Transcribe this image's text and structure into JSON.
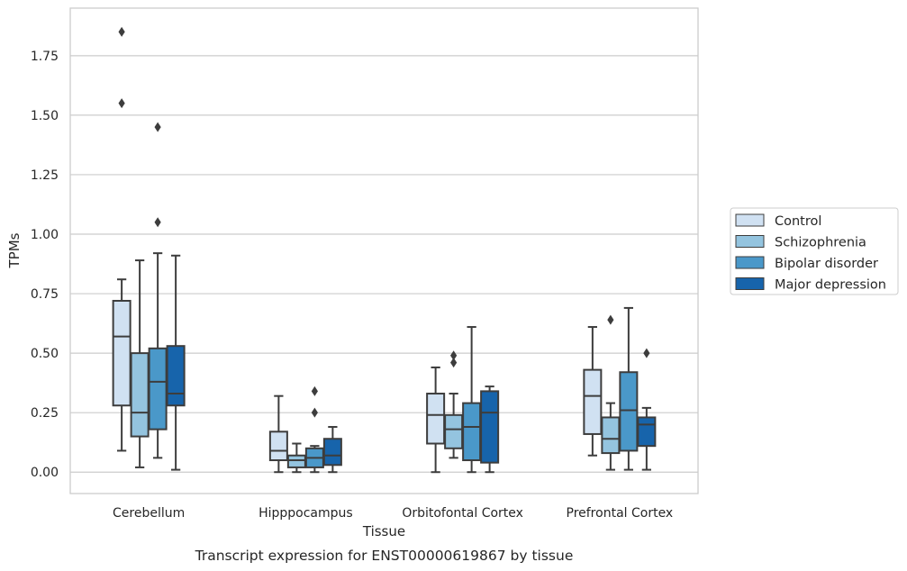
{
  "chart_data": {
    "type": "box",
    "xlabel": "Tissue",
    "ylabel": "TPMs",
    "caption": "Transcript expression for ENST00000619867 by tissue",
    "ylim": [
      -0.09,
      1.95
    ],
    "yticks": [
      "0.00",
      "0.25",
      "0.50",
      "0.75",
      "1.00",
      "1.25",
      "1.50",
      "1.75"
    ],
    "ytick_values": [
      0,
      0.25,
      0.5,
      0.75,
      1.0,
      1.25,
      1.5,
      1.75
    ],
    "grid": "horizontal",
    "legend_position": "right",
    "categories": [
      "Cerebellum",
      "Hipppocampus",
      "Orbitofontal Cortex",
      "Prefrontal Cortex"
    ],
    "series": [
      {
        "name": "Control",
        "color": "#d0e1f2",
        "boxes": [
          {
            "whislo": 0.09,
            "q1": 0.28,
            "med": 0.57,
            "q3": 0.72,
            "whishi": 0.81,
            "fliers": [
              1.85,
              1.55
            ]
          },
          {
            "whislo": 0.0,
            "q1": 0.05,
            "med": 0.09,
            "q3": 0.17,
            "whishi": 0.32,
            "fliers": []
          },
          {
            "whislo": 0.0,
            "q1": 0.12,
            "med": 0.24,
            "q3": 0.33,
            "whishi": 0.44,
            "fliers": []
          },
          {
            "whislo": 0.07,
            "q1": 0.16,
            "med": 0.32,
            "q3": 0.43,
            "whishi": 0.61,
            "fliers": []
          }
        ]
      },
      {
        "name": "Schizophrenia",
        "color": "#94c4df",
        "boxes": [
          {
            "whislo": 0.02,
            "q1": 0.15,
            "med": 0.25,
            "q3": 0.5,
            "whishi": 0.89,
            "fliers": []
          },
          {
            "whislo": 0.0,
            "q1": 0.02,
            "med": 0.05,
            "q3": 0.07,
            "whishi": 0.12,
            "fliers": []
          },
          {
            "whislo": 0.06,
            "q1": 0.1,
            "med": 0.18,
            "q3": 0.24,
            "whishi": 0.33,
            "fliers": [
              0.49,
              0.46
            ]
          },
          {
            "whislo": 0.01,
            "q1": 0.08,
            "med": 0.14,
            "q3": 0.23,
            "whishi": 0.29,
            "fliers": [
              0.64
            ]
          }
        ]
      },
      {
        "name": "Bipolar disorder",
        "color": "#4a98c9",
        "boxes": [
          {
            "whislo": 0.06,
            "q1": 0.18,
            "med": 0.38,
            "q3": 0.52,
            "whishi": 0.92,
            "fliers": [
              1.45,
              1.05
            ]
          },
          {
            "whislo": 0.0,
            "q1": 0.02,
            "med": 0.06,
            "q3": 0.1,
            "whishi": 0.11,
            "fliers": [
              0.34,
              0.25
            ]
          },
          {
            "whislo": 0.0,
            "q1": 0.05,
            "med": 0.19,
            "q3": 0.29,
            "whishi": 0.61,
            "fliers": []
          },
          {
            "whislo": 0.01,
            "q1": 0.09,
            "med": 0.26,
            "q3": 0.42,
            "whishi": 0.69,
            "fliers": []
          }
        ]
      },
      {
        "name": "Major depression",
        "color": "#1764ab",
        "boxes": [
          {
            "whislo": 0.01,
            "q1": 0.28,
            "med": 0.33,
            "q3": 0.53,
            "whishi": 0.91,
            "fliers": []
          },
          {
            "whislo": 0.0,
            "q1": 0.03,
            "med": 0.07,
            "q3": 0.14,
            "whishi": 0.19,
            "fliers": []
          },
          {
            "whislo": 0.0,
            "q1": 0.04,
            "med": 0.25,
            "q3": 0.34,
            "whishi": 0.36,
            "fliers": []
          },
          {
            "whislo": 0.01,
            "q1": 0.11,
            "med": 0.2,
            "q3": 0.23,
            "whishi": 0.27,
            "fliers": [
              0.5
            ]
          }
        ]
      }
    ]
  }
}
